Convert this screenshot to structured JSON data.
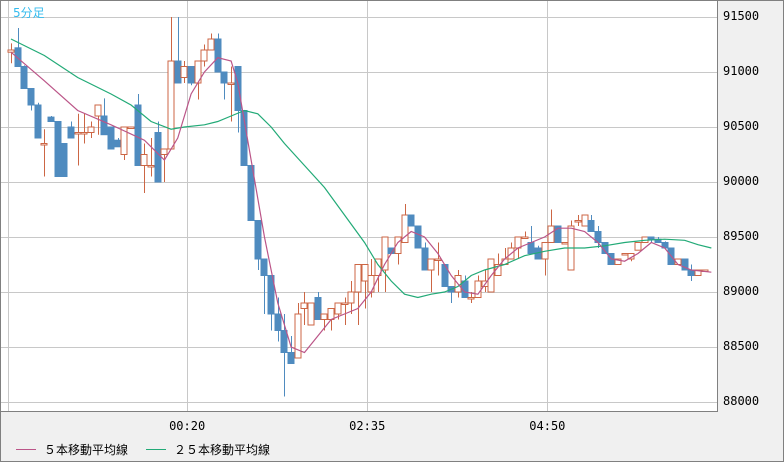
{
  "header": {
    "period_label": "5分足"
  },
  "colors": {
    "up": "#cc6644",
    "down": "#4f8bbf",
    "ma5": "#bb5588",
    "ma25": "#22aa77",
    "grid": "#c8c8c8"
  },
  "legend": [
    {
      "label": "５本移動平均線",
      "color": "#bb5588"
    },
    {
      "label": "２５本移動平均線",
      "color": "#22aa77"
    }
  ],
  "chart_data": {
    "type": "candlestick",
    "title": "5分足",
    "xlabel": "",
    "ylabel": "",
    "ylim": [
      87900,
      91650
    ],
    "y_ticks": [
      91500,
      91000,
      90500,
      90000,
      89500,
      89000,
      88500,
      88000
    ],
    "x_ticks": [
      {
        "label": "00:20",
        "index": 27
      },
      {
        "label": "02:35",
        "index": 54
      },
      {
        "label": "04:50",
        "index": 81
      }
    ],
    "legend": [
      "５本移動平均線",
      "２５本移動平均線"
    ],
    "candles": [
      [
        91180,
        91260,
        91080,
        91200
      ],
      [
        91220,
        91400,
        91050,
        91050
      ],
      [
        91050,
        91060,
        90850,
        90850
      ],
      [
        90850,
        90850,
        90650,
        90700
      ],
      [
        90700,
        90720,
        90420,
        90400
      ],
      [
        90350,
        90480,
        90050,
        90350
      ],
      [
        90590,
        90600,
        90550,
        90550
      ],
      [
        90550,
        90550,
        90050,
        90050
      ],
      [
        90350,
        90350,
        90060,
        90050
      ],
      [
        90500,
        90550,
        90500,
        90400
      ],
      [
        90450,
        90620,
        90150,
        90450
      ],
      [
        90450,
        90620,
        90350,
        90450
      ],
      [
        90450,
        90550,
        90400,
        90500
      ],
      [
        90600,
        90670,
        90430,
        90700
      ],
      [
        90600,
        90760,
        90480,
        90430
      ],
      [
        90500,
        90500,
        90400,
        90300
      ],
      [
        90380,
        90400,
        90380,
        90320
      ],
      [
        90250,
        90380,
        90200,
        90500
      ],
      [
        90500,
        90500,
        90500,
        90500
      ],
      [
        90700,
        90800,
        90150,
        90150
      ],
      [
        90150,
        90350,
        89900,
        90250
      ],
      [
        90150,
        90400,
        90050,
        90150
      ],
      [
        90450,
        90550,
        90000,
        90000
      ],
      [
        90250,
        90300,
        90000,
        90300
      ],
      [
        90300,
        91500,
        90300,
        91100
      ],
      [
        91100,
        91500,
        90900,
        90900
      ],
      [
        90950,
        91100,
        90900,
        91050
      ],
      [
        91050,
        91000,
        90880,
        90900
      ],
      [
        90900,
        91100,
        90750,
        91100
      ],
      [
        91100,
        91250,
        91050,
        91200
      ],
      [
        91200,
        91350,
        91200,
        91300
      ],
      [
        91300,
        91350,
        91050,
        91000
      ],
      [
        91000,
        91000,
        90750,
        90900
      ],
      [
        90900,
        91050,
        90550,
        90900
      ],
      [
        91050,
        91050,
        90450,
        90650
      ],
      [
        90650,
        90650,
        90150,
        90150
      ],
      [
        90150,
        90150,
        89650,
        89650
      ],
      [
        89650,
        89600,
        89200,
        89300
      ],
      [
        89300,
        89300,
        88800,
        89150
      ],
      [
        89150,
        89150,
        88650,
        88800
      ],
      [
        88800,
        88950,
        88550,
        88650
      ],
      [
        88650,
        88800,
        88050,
        88450
      ],
      [
        88450,
        88600,
        88350,
        88350
      ],
      [
        88400,
        88900,
        88400,
        88800
      ],
      [
        88850,
        89000,
        88700,
        88900
      ],
      [
        88700,
        88900,
        88700,
        88900
      ],
      [
        88950,
        89000,
        88750,
        88750
      ],
      [
        88750,
        88800,
        88650,
        88800
      ],
      [
        88750,
        88800,
        88650,
        88850
      ],
      [
        88800,
        88900,
        88750,
        88900
      ],
      [
        88900,
        88950,
        88700,
        88900
      ],
      [
        88900,
        89100,
        88800,
        89000
      ],
      [
        89000,
        89200,
        88700,
        89250
      ],
      [
        89100,
        89250,
        88850,
        89250
      ],
      [
        89000,
        89300,
        88950,
        89150
      ],
      [
        89150,
        89300,
        89000,
        89300
      ],
      [
        89200,
        89400,
        89000,
        89500
      ],
      [
        89400,
        89400,
        89350,
        89350
      ],
      [
        89350,
        89500,
        89250,
        89500
      ],
      [
        89450,
        89800,
        89450,
        89700
      ],
      [
        89700,
        89700,
        89600,
        89600
      ],
      [
        89600,
        89600,
        89400,
        89400
      ],
      [
        89400,
        89450,
        89200,
        89200
      ],
      [
        89200,
        89200,
        89000,
        89300
      ],
      [
        89300,
        89450,
        89150,
        89300
      ],
      [
        89250,
        89250,
        89050,
        89050
      ],
      [
        89050,
        89050,
        88900,
        89000
      ],
      [
        89000,
        89200,
        88950,
        89150
      ],
      [
        89100,
        89150,
        88950,
        88950
      ],
      [
        88950,
        89000,
        88900,
        88950
      ],
      [
        88950,
        89150,
        88950,
        89100
      ],
      [
        89050,
        89200,
        89000,
        89100
      ],
      [
        89000,
        89250,
        89000,
        89300
      ],
      [
        89150,
        89350,
        89150,
        89250
      ],
      [
        89250,
        89400,
        89250,
        89300
      ],
      [
        89300,
        89450,
        89300,
        89400
      ],
      [
        89400,
        89500,
        89300,
        89500
      ],
      [
        89500,
        89550,
        89500,
        89500
      ],
      [
        89450,
        89600,
        89400,
        89350
      ],
      [
        89400,
        89420,
        89300,
        89300
      ],
      [
        89300,
        89400,
        89150,
        89450
      ],
      [
        89450,
        89750,
        89450,
        89600
      ],
      [
        89600,
        89600,
        89450,
        89450
      ],
      [
        89450,
        89450,
        89450,
        89450
      ],
      [
        89200,
        89650,
        89200,
        89600
      ],
      [
        89650,
        89700,
        89600,
        89650
      ],
      [
        89600,
        89650,
        89600,
        89700
      ],
      [
        89650,
        89700,
        89600,
        89550
      ],
      [
        89550,
        89600,
        89400,
        89450
      ],
      [
        89450,
        89450,
        89350,
        89350
      ],
      [
        89350,
        89350,
        89300,
        89250
      ],
      [
        89250,
        89300,
        89250,
        89300
      ],
      [
        89350,
        89350,
        89350,
        89350
      ],
      [
        89300,
        89350,
        89280,
        89350
      ],
      [
        89380,
        89400,
        89380,
        89450
      ],
      [
        89450,
        89500,
        89450,
        89500
      ],
      [
        89500,
        89500,
        89450,
        89480
      ],
      [
        89480,
        89500,
        89450,
        89450
      ],
      [
        89450,
        89460,
        89400,
        89400
      ],
      [
        89400,
        89400,
        89250,
        89250
      ],
      [
        89250,
        89300,
        89250,
        89300
      ],
      [
        89300,
        89300,
        89200,
        89200
      ],
      [
        89200,
        89250,
        89100,
        89150
      ],
      [
        89150,
        89200,
        89150,
        89200
      ],
      [
        89200,
        89200,
        89200,
        89200
      ]
    ],
    "ma5_points": [
      [
        0,
        91180
      ],
      [
        5,
        90920
      ],
      [
        10,
        90650
      ],
      [
        15,
        90520
      ],
      [
        20,
        90380
      ],
      [
        23,
        90200
      ],
      [
        25,
        90400
      ],
      [
        27,
        90800
      ],
      [
        29,
        91000
      ],
      [
        31,
        91130
      ],
      [
        33,
        91100
      ],
      [
        34,
        90900
      ],
      [
        36,
        90200
      ],
      [
        38,
        89500
      ],
      [
        40,
        88900
      ],
      [
        42,
        88500
      ],
      [
        44,
        88450
      ],
      [
        46,
        88600
      ],
      [
        48,
        88750
      ],
      [
        50,
        88800
      ],
      [
        52,
        88850
      ],
      [
        54,
        89000
      ],
      [
        56,
        89250
      ],
      [
        58,
        89450
      ],
      [
        60,
        89550
      ],
      [
        62,
        89500
      ],
      [
        64,
        89350
      ],
      [
        66,
        89150
      ],
      [
        68,
        89000
      ],
      [
        70,
        88980
      ],
      [
        72,
        89150
      ],
      [
        74,
        89300
      ],
      [
        76,
        89400
      ],
      [
        78,
        89450
      ],
      [
        80,
        89500
      ],
      [
        82,
        89580
      ],
      [
        84,
        89580
      ],
      [
        86,
        89550
      ],
      [
        88,
        89450
      ],
      [
        90,
        89300
      ],
      [
        92,
        89280
      ],
      [
        94,
        89350
      ],
      [
        96,
        89450
      ],
      [
        98,
        89400
      ],
      [
        100,
        89250
      ],
      [
        102,
        89200
      ],
      [
        105,
        89180
      ]
    ],
    "ma25_points": [
      [
        0,
        91300
      ],
      [
        5,
        91150
      ],
      [
        10,
        90950
      ],
      [
        15,
        90800
      ],
      [
        18,
        90700
      ],
      [
        21,
        90550
      ],
      [
        24,
        90480
      ],
      [
        26,
        90500
      ],
      [
        29,
        90520
      ],
      [
        31,
        90550
      ],
      [
        33,
        90600
      ],
      [
        35,
        90650
      ],
      [
        37,
        90620
      ],
      [
        39,
        90500
      ],
      [
        41,
        90350
      ],
      [
        44,
        90150
      ],
      [
        47,
        89950
      ],
      [
        50,
        89700
      ],
      [
        53,
        89450
      ],
      [
        55,
        89250
      ],
      [
        57,
        89100
      ],
      [
        59,
        88980
      ],
      [
        61,
        88950
      ],
      [
        63,
        88980
      ],
      [
        65,
        89000
      ],
      [
        67,
        89050
      ],
      [
        69,
        89150
      ],
      [
        71,
        89200
      ],
      [
        74,
        89250
      ],
      [
        77,
        89330
      ],
      [
        80,
        89370
      ],
      [
        83,
        89400
      ],
      [
        86,
        89400
      ],
      [
        89,
        89420
      ],
      [
        92,
        89450
      ],
      [
        95,
        89470
      ],
      [
        98,
        89480
      ],
      [
        101,
        89470
      ],
      [
        103,
        89430
      ],
      [
        105,
        89400
      ]
    ]
  }
}
